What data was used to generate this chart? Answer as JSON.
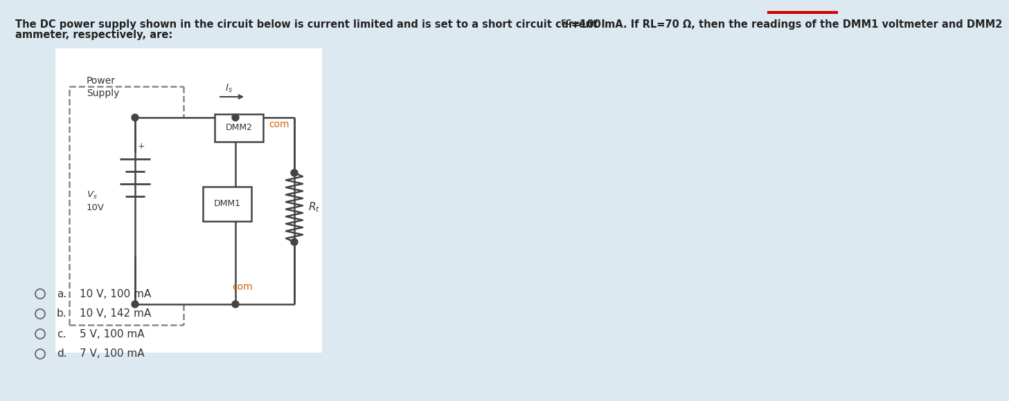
{
  "bg_color": "#dce9f0",
  "white_bg": "#ffffff",
  "title_line1": "The DC power supply shown in the circuit below is current limited and is set to a short circuit current I",
  "title_isc": "SC",
  "title_line1b": "=100 mA. If RL=70 Ω, then the readings of the DMM1 voltmeter and DMM2",
  "title_line2": "ammeter, respectively, are:",
  "title_fontsize": 10.5,
  "title_color": "#222222",
  "options": [
    {
      "label": "a.",
      "text": "10 V, 100 mA"
    },
    {
      "label": "b.",
      "text": "10 V, 142 mA"
    },
    {
      "label": "c.",
      "text": "5 V, 100 mA"
    },
    {
      "label": "d.",
      "text": "7 V, 100 mA"
    }
  ],
  "com_color": "#cc6600",
  "line_color": "#444444",
  "dash_color": "#888888",
  "text_color": "#333333",
  "red_color": "#cc0000"
}
